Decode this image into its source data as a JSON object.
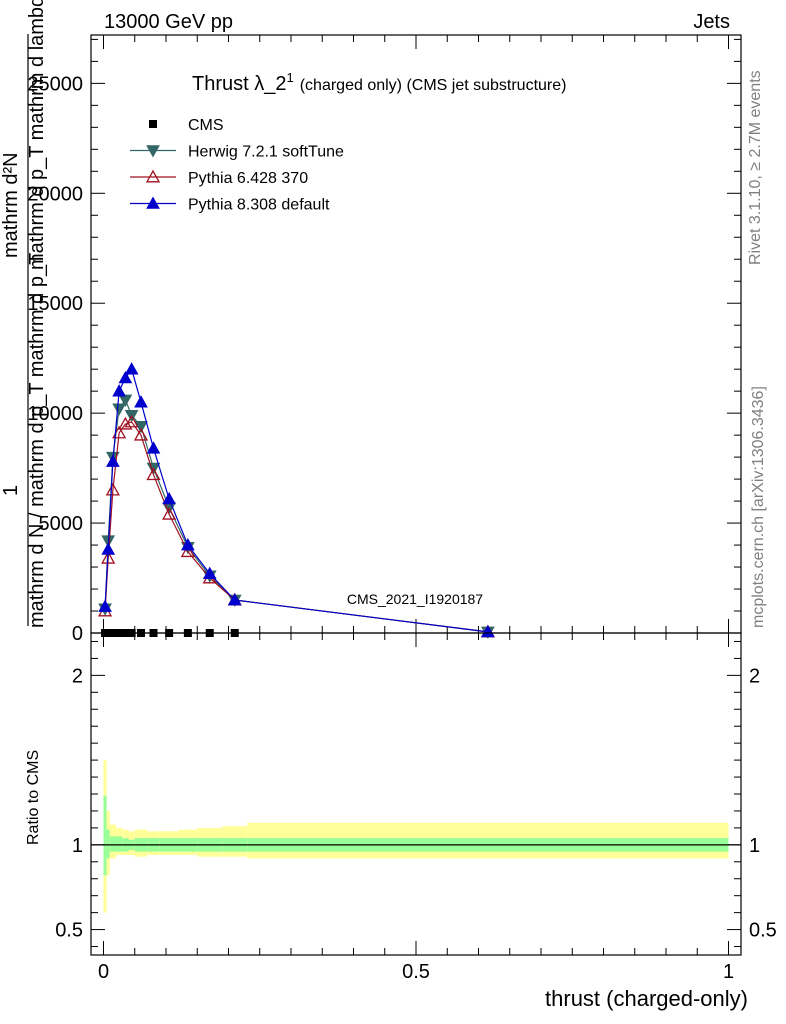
{
  "header": {
    "left": "13000 GeV pp",
    "right": "Jets"
  },
  "side_labels": {
    "top": "Rivet 3.1.10, ≥ 2.7M events",
    "bottom": "mcplots.cern.ch [arXiv:1306.3436]"
  },
  "watermark": "CMS_2021_I1920187",
  "chart_data": [
    {
      "type": "line",
      "title": "Thrust λ_2",
      "title_sup": "1",
      "title_suffix": "(charged only) (CMS jet substructure)",
      "ylabel_lines": [
        "mathrm d²N",
        "mathrm d p_T mathrm d lambda",
        "1",
        "mathrm d N / mathrm d p_T mathrm d p_T"
      ],
      "xlim": [
        -0.02,
        1.02
      ],
      "ylim": [
        0,
        27200
      ],
      "yticks": [
        0,
        5000,
        10000,
        15000,
        20000,
        25000
      ],
      "ytick_labels": [
        "0",
        "5000",
        "10000",
        "15000",
        "20000",
        "25000"
      ],
      "legend_position": "top-left",
      "x": [
        0.0025,
        0.0075,
        0.015,
        0.025,
        0.035,
        0.045,
        0.06,
        0.08,
        0.105,
        0.135,
        0.17,
        0.21,
        0.615
      ],
      "series": [
        {
          "name": "CMS",
          "color": "#000000",
          "marker": "square",
          "values": [
            0,
            0,
            0,
            0,
            0,
            0,
            0,
            0,
            0,
            0,
            0,
            0,
            0
          ]
        },
        {
          "name": "Herwig 7.2.1 softTune",
          "color": "#336666",
          "marker": "triangle-down",
          "values": [
            1100,
            4200,
            8000,
            10200,
            10600,
            9900,
            9400,
            7500,
            5700,
            3900,
            2600,
            1500,
            50
          ]
        },
        {
          "name": "Pythia 6.428 370",
          "color": "#a01020",
          "marker": "triangle-up-open",
          "values": [
            1000,
            3400,
            6500,
            9100,
            9500,
            9600,
            9000,
            7200,
            5400,
            3700,
            2500,
            1500,
            50
          ]
        },
        {
          "name": "Pythia 8.308 default",
          "color": "#0000cc",
          "marker": "triangle-up",
          "values": [
            1200,
            3800,
            7800,
            11000,
            11600,
            12000,
            10500,
            8400,
            6100,
            4000,
            2700,
            1500,
            50
          ]
        }
      ]
    },
    {
      "type": "area",
      "ylabel": "Ratio to CMS",
      "xlabel": "thrust (charged-only)",
      "xlim": [
        -0.02,
        1.02
      ],
      "ylim": [
        0.35,
        2.25
      ],
      "yticks": [
        0.5,
        1,
        2
      ],
      "ytick_labels": [
        "0.5",
        "1",
        "2"
      ],
      "xticks": [
        0,
        0.5,
        1
      ],
      "xtick_labels": [
        "0",
        "0.5",
        "1"
      ],
      "band_colors": {
        "outer": "#ffff99",
        "inner": "#99ff99"
      },
      "x_edges": [
        0,
        0.005,
        0.01,
        0.02,
        0.03,
        0.04,
        0.05,
        0.07,
        0.09,
        0.12,
        0.15,
        0.19,
        0.23,
        1.0
      ],
      "inner_band": [
        [
          0.82,
          1.29
        ],
        [
          0.92,
          1.09
        ],
        [
          0.96,
          1.05
        ],
        [
          0.96,
          1.05
        ],
        [
          0.96,
          1.04
        ],
        [
          0.97,
          1.03
        ],
        [
          0.96,
          1.04
        ],
        [
          0.96,
          1.04
        ],
        [
          0.96,
          1.04
        ],
        [
          0.96,
          1.04
        ],
        [
          0.96,
          1.04
        ],
        [
          0.96,
          1.04
        ],
        [
          0.96,
          1.04
        ]
      ],
      "outer_band": [
        [
          0.6,
          1.5
        ],
        [
          0.82,
          1.2
        ],
        [
          0.92,
          1.12
        ],
        [
          0.94,
          1.1
        ],
        [
          0.94,
          1.09
        ],
        [
          0.94,
          1.08
        ],
        [
          0.93,
          1.09
        ],
        [
          0.94,
          1.08
        ],
        [
          0.94,
          1.08
        ],
        [
          0.94,
          1.09
        ],
        [
          0.93,
          1.1
        ],
        [
          0.93,
          1.11
        ],
        [
          0.92,
          1.13
        ]
      ]
    }
  ]
}
